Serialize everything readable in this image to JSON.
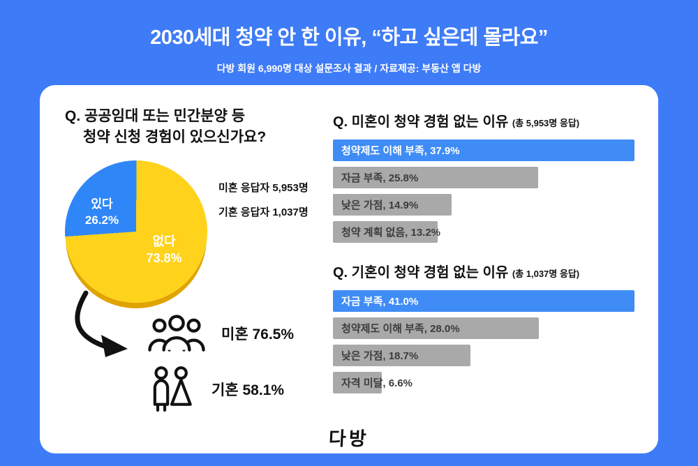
{
  "page": {
    "title": "2030세대 청약 안 한 이유, “하고 싶은데 몰라요”",
    "subtitle": "다방 회원 6,990명 대상 설문조사 결과 / 자료제공: 부동산 앱 다방",
    "logo": "다방",
    "background_color": "#3e7bf7"
  },
  "colors": {
    "pie_blue": "#2f87f7",
    "pie_yellow": "#ffd21c",
    "pie_yellow_shadow": "#dfa400",
    "bar_blue": "#3f8cf7",
    "bar_gray": "#a9a9a9"
  },
  "left_panel": {
    "question_line1": "Q. 공공임대 또는 민간분양 등",
    "question_line2": "청약 신청 경험이 있으신가요?",
    "respondents": [
      "미혼 응답자 5,953명",
      "기혼 응답자 1,037명"
    ],
    "stats": [
      {
        "icon": "group-icon",
        "label": "미혼 76.5%"
      },
      {
        "icon": "couple-icon",
        "label": "기혼 58.1%"
      }
    ]
  },
  "chart_data": [
    {
      "type": "pie",
      "title": "Q. 공공임대 또는 민간분양 등 청약 신청 경험이 있으신가요?",
      "slices": [
        {
          "label": "있다",
          "value": 26.2,
          "color": "#2f87f7"
        },
        {
          "label": "없다",
          "value": 73.8,
          "color": "#ffd21c"
        }
      ],
      "unit": "%",
      "start_angle_deg": 266
    },
    {
      "type": "bar",
      "title": "Q. 미혼이 청약 경험 없는 이유",
      "subtitle": "(총 5,953명 응답)",
      "categories": [
        "청약제도 이해 부족",
        "자금 부족",
        "낮은 가점",
        "청약 계획 없음"
      ],
      "values": [
        37.9,
        25.8,
        14.9,
        13.2
      ],
      "unit": "%",
      "highlight_index": 0,
      "orientation": "horizontal"
    },
    {
      "type": "bar",
      "title": "Q. 기혼이 청약 경험 없는 이유",
      "subtitle": "(총 1,037명 응답)",
      "categories": [
        "자금 부족",
        "청약제도 이해 부족",
        "낮은 가점",
        "자격 미달"
      ],
      "values": [
        41.0,
        28.0,
        18.7,
        6.6
      ],
      "unit": "%",
      "highlight_index": 0,
      "orientation": "horizontal"
    }
  ]
}
